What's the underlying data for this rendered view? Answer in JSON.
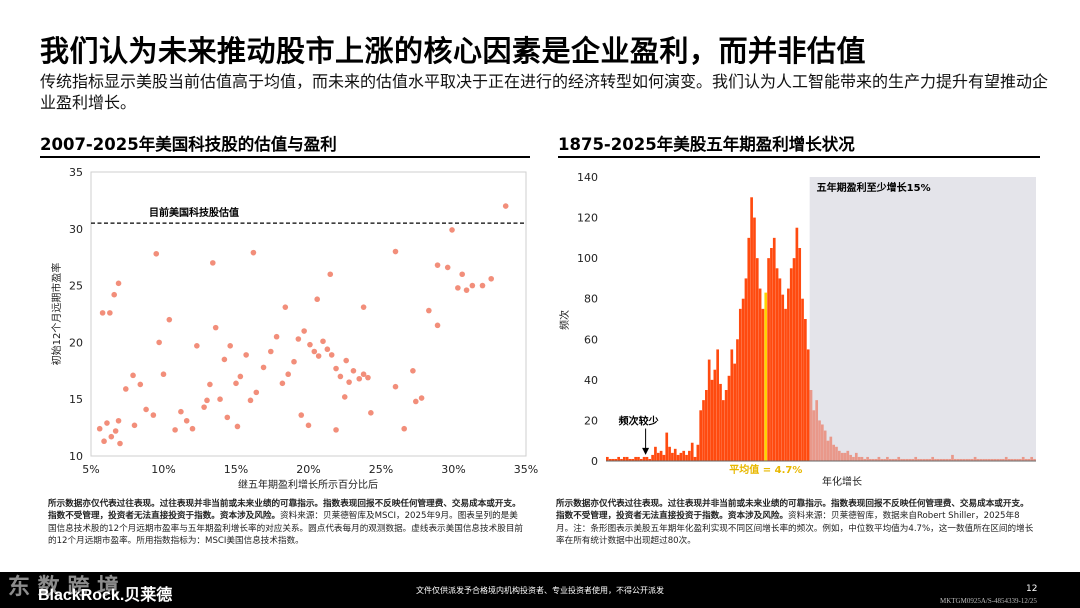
{
  "header": {
    "title": "我们认为未来推动股市上涨的核心因素是企业盈利，而并非估值",
    "subtitle": "传统指标显示美股当前估值高于均值，而未来的估值水平取决于正在进行的经济转型如何演变。我们认为人工智能带来的生产力提升有望推动企业盈利增长。"
  },
  "colors": {
    "accent": "#ff4a0f",
    "light_accent": "#e9988a",
    "mean_line": "#ffd200",
    "shade": "#e4e4ea",
    "scatter": "#f07a63"
  },
  "left_panel": {
    "title": "2007-2025年美国科技股的估值与盈利",
    "footnote_bold": "所示数据亦仅代表过往表现。过往表现并非当前或未来业绩的可靠指示。指数表现回报不反映任何管理费、交易成本或开支。指数不受管理，投资者无法直接投资于指数。资本涉及风险。",
    "footnote_text": "资料来源：贝莱德智库及MSCI，2025年9月。图表呈列的是美国信息技术股的12个月远期市盈率与五年期盈利增长率的对应关系。圆点代表每月的观测数据。虚线表示美国信息技术股目前的12个月远期市盈率。所用指数指标为：MSCI美国信息技术指数。"
  },
  "right_panel": {
    "title": "1875-2025年美股五年期盈利增长状况",
    "footnote_bold": "所示数据亦仅代表过往表现。过往表现并非当前或未来业绩的可靠指示。指数表现回报不反映任何管理费、交易成本或开支。指数不受管理，投资者无法直接投资于指数。资本涉及风险。",
    "footnote_text": "资料来源：贝莱德智库，数据来自Robert Shiller，2025年8月。注：条形图表示美股五年期年化盈利实现不同区间增长率的频次。例如，中位数平均值为4.7%，这一数值所在区间的增长率在所有统计数据中出现超过80次。"
  },
  "footer": {
    "logo": "BlackRock.贝莱德",
    "distribution": "文件仅供派发予合格境内机构投资者、专业投资者使用，不得公开派发",
    "page_number": "12",
    "doc_code": "MKTGM0925A/S-4854339-12/25",
    "watermark": "东 数 跨 境"
  },
  "chart_data": [
    {
      "type": "scatter",
      "title": "2007-2025年美国科技股的估值与盈利",
      "xlabel": "继五年期盈利增长所示百分比后",
      "ylabel": "初始12个月远期市盈率",
      "xlim": [
        5,
        35
      ],
      "ylim": [
        10,
        35
      ],
      "x_ticks": [
        "5%",
        "10%",
        "15%",
        "20%",
        "25%",
        "30%",
        "35%"
      ],
      "y_ticks": [
        "10",
        "15",
        "20",
        "25",
        "30",
        "35"
      ],
      "reference_line": {
        "y": 30.5,
        "label": "目前美国科技股估值",
        "style": "dashed"
      },
      "points": [
        [
          5.6,
          12.4
        ],
        [
          5.9,
          11.3
        ],
        [
          6.1,
          12.9
        ],
        [
          6.4,
          11.7
        ],
        [
          6.7,
          12.2
        ],
        [
          6.9,
          13.1
        ],
        [
          5.8,
          22.6
        ],
        [
          6.3,
          22.6
        ],
        [
          6.6,
          24.2
        ],
        [
          6.9,
          25.2
        ],
        [
          7.0,
          11.1
        ],
        [
          7.4,
          15.9
        ],
        [
          7.9,
          17.1
        ],
        [
          8.4,
          16.3
        ],
        [
          8.0,
          12.7
        ],
        [
          8.8,
          14.1
        ],
        [
          9.3,
          13.6
        ],
        [
          9.7,
          20.0
        ],
        [
          10.0,
          17.2
        ],
        [
          10.4,
          22.0
        ],
        [
          10.8,
          12.3
        ],
        [
          11.2,
          13.9
        ],
        [
          11.6,
          13.1
        ],
        [
          12.0,
          12.4
        ],
        [
          9.5,
          27.8
        ],
        [
          12.8,
          14.3
        ],
        [
          13.2,
          16.3
        ],
        [
          13.6,
          21.3
        ],
        [
          13.9,
          15.0
        ],
        [
          14.2,
          18.5
        ],
        [
          14.6,
          19.7
        ],
        [
          15.0,
          16.4
        ],
        [
          15.3,
          17.0
        ],
        [
          15.7,
          18.9
        ],
        [
          16.0,
          14.9
        ],
        [
          16.4,
          15.6
        ],
        [
          14.4,
          13.4
        ],
        [
          13.0,
          14.9
        ],
        [
          16.2,
          27.9
        ],
        [
          13.4,
          27.0
        ],
        [
          15.1,
          12.6
        ],
        [
          12.3,
          19.7
        ],
        [
          16.9,
          17.8
        ],
        [
          17.4,
          19.2
        ],
        [
          17.8,
          20.5
        ],
        [
          18.2,
          16.4
        ],
        [
          18.6,
          17.2
        ],
        [
          19.0,
          18.3
        ],
        [
          19.3,
          20.3
        ],
        [
          19.7,
          21.0
        ],
        [
          20.1,
          19.8
        ],
        [
          20.4,
          19.2
        ],
        [
          20.7,
          18.8
        ],
        [
          21.0,
          20.1
        ],
        [
          21.3,
          19.4
        ],
        [
          21.6,
          18.9
        ],
        [
          21.9,
          17.7
        ],
        [
          19.5,
          13.6
        ],
        [
          20.0,
          12.7
        ],
        [
          18.4,
          23.1
        ],
        [
          20.6,
          23.8
        ],
        [
          22.2,
          17.0
        ],
        [
          22.5,
          15.2
        ],
        [
          22.8,
          16.5
        ],
        [
          23.1,
          17.5
        ],
        [
          23.5,
          16.8
        ],
        [
          23.8,
          17.2
        ],
        [
          24.1,
          16.9
        ],
        [
          22.6,
          18.4
        ],
        [
          21.9,
          12.3
        ],
        [
          21.5,
          26.0
        ],
        [
          23.8,
          23.1
        ],
        [
          24.3,
          13.8
        ],
        [
          26.0,
          16.1
        ],
        [
          26.6,
          12.4
        ],
        [
          27.2,
          17.5
        ],
        [
          27.8,
          15.1
        ],
        [
          28.3,
          22.8
        ],
        [
          28.9,
          26.8
        ],
        [
          27.4,
          14.8
        ],
        [
          26.0,
          28.0
        ],
        [
          28.9,
          21.5
        ],
        [
          29.9,
          29.9
        ],
        [
          30.3,
          24.8
        ],
        [
          30.6,
          26.0
        ],
        [
          30.9,
          24.6
        ],
        [
          31.3,
          25.0
        ],
        [
          32.0,
          25.0
        ],
        [
          32.6,
          25.6
        ],
        [
          29.6,
          26.6
        ],
        [
          33.6,
          32.0
        ]
      ]
    },
    {
      "type": "bar",
      "title": "1875-2025年美股五年期盈利增长状况",
      "xlabel": "年化增长",
      "ylabel": "频次",
      "ylim": [
        0,
        140
      ],
      "y_ticks": [
        "0",
        "20",
        "40",
        "60",
        "80",
        "100",
        "120",
        "140"
      ],
      "annotations": {
        "few_label": "频次较少",
        "mean_label": "平均值 = 4.7%",
        "shade_label": "五年期盈利至少增长15%"
      },
      "mean_bin_index": 56,
      "threshold_bin_index": 72,
      "values": [
        2,
        1,
        1,
        1,
        2,
        1,
        2,
        2,
        1,
        1,
        2,
        2,
        1,
        2,
        2,
        1,
        3,
        7,
        4,
        5,
        3,
        14,
        7,
        4,
        6,
        3,
        4,
        5,
        3,
        5,
        9,
        2,
        8,
        25,
        30,
        35,
        50,
        40,
        45,
        55,
        38,
        30,
        35,
        42,
        55,
        48,
        60,
        75,
        80,
        90,
        110,
        130,
        120,
        100,
        85,
        75,
        83,
        100,
        105,
        110,
        95,
        90,
        82,
        75,
        85,
        95,
        100,
        115,
        105,
        80,
        70,
        55,
        35,
        25,
        30,
        20,
        18,
        15,
        10,
        12,
        8,
        7,
        5,
        4,
        4,
        5,
        3,
        2,
        4,
        2,
        2,
        1,
        2,
        1,
        1,
        1,
        2,
        1,
        1,
        2,
        1,
        1,
        1,
        2,
        1,
        1,
        1,
        1,
        1,
        2,
        1,
        1,
        1,
        1,
        1,
        2,
        1,
        1,
        1,
        1,
        1,
        1,
        3,
        1,
        1,
        1,
        1,
        1,
        1,
        1,
        2,
        1,
        1,
        1,
        1,
        1,
        1,
        1,
        1,
        1,
        1,
        2,
        1,
        1,
        1,
        1,
        1,
        2,
        1,
        1,
        2,
        1
      ]
    }
  ]
}
